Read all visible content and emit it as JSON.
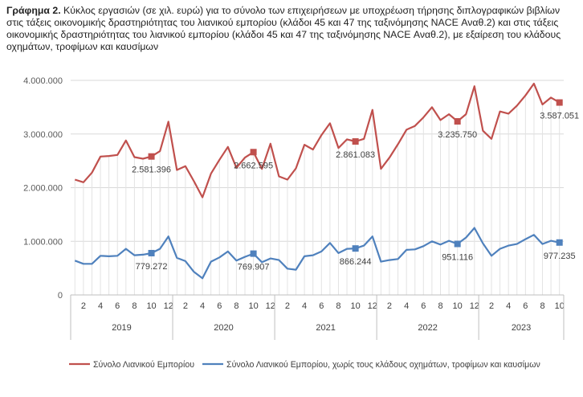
{
  "caption": {
    "label": "Γράφημα 2.",
    "text": "Κύκλος εργασιών (σε χιλ. ευρώ) για το σύνολο των επιχειρήσεων με υποχρέωση τήρησης διπλογραφικών βιβλίων στις τάξεις οικονομικής δραστηριότητας του λιανικού εμπορίου (κλάδοι 45 και 47 της ταξινόμησης NACE Αναθ.2) και στις τάξεις οικονομικής δραστηριότητας του λιανικού εμπορίου (κλάδοι 45 και 47 της ταξινόμησης NACE Αναθ.2), με εξαίρεση του κλάδους οχημάτων, τροφίμων και καυσίμων"
  },
  "chart_data": {
    "type": "line",
    "years": [
      "2019",
      "2020",
      "2021",
      "2022",
      "2023"
    ],
    "month_ticks": [
      "2",
      "4",
      "6",
      "8",
      "10",
      "12"
    ],
    "x": [
      "2019-01",
      "2019-02",
      "2019-03",
      "2019-04",
      "2019-05",
      "2019-06",
      "2019-07",
      "2019-08",
      "2019-09",
      "2019-10",
      "2019-11",
      "2019-12",
      "2020-01",
      "2020-02",
      "2020-03",
      "2020-04",
      "2020-05",
      "2020-06",
      "2020-07",
      "2020-08",
      "2020-09",
      "2020-10",
      "2020-11",
      "2020-12",
      "2021-01",
      "2021-02",
      "2021-03",
      "2021-04",
      "2021-05",
      "2021-06",
      "2021-07",
      "2021-08",
      "2021-09",
      "2021-10",
      "2021-11",
      "2021-12",
      "2022-01",
      "2022-02",
      "2022-03",
      "2022-04",
      "2022-05",
      "2022-06",
      "2022-07",
      "2022-08",
      "2022-09",
      "2022-10",
      "2022-11",
      "2022-12",
      "2023-01",
      "2023-02",
      "2023-03",
      "2023-04",
      "2023-05",
      "2023-06",
      "2023-07",
      "2023-08",
      "2023-09",
      "2023-10"
    ],
    "ylim": [
      0,
      4000000
    ],
    "yticks": [
      0,
      1000000,
      2000000,
      3000000,
      4000000
    ],
    "ytick_labels": [
      "0",
      "1.000.000",
      "2.000.000",
      "3.000.000",
      "4.000.000"
    ],
    "grid": true,
    "legend": "bottom",
    "series": [
      {
        "name": "Σύνολο Λιανικού Εμπορίου",
        "color": "#c0504d",
        "values": [
          2150000,
          2100000,
          2280000,
          2580000,
          2590000,
          2610000,
          2880000,
          2570000,
          2540000,
          2581396,
          2680000,
          3230000,
          2330000,
          2400000,
          2120000,
          1820000,
          2260000,
          2520000,
          2760000,
          2370000,
          2560000,
          2662595,
          2350000,
          2820000,
          2210000,
          2150000,
          2360000,
          2800000,
          2710000,
          2980000,
          3200000,
          2740000,
          2900000,
          2861083,
          2910000,
          3450000,
          2350000,
          2560000,
          2810000,
          3080000,
          3150000,
          3310000,
          3500000,
          3260000,
          3370000,
          3235750,
          3370000,
          3890000,
          3060000,
          2910000,
          3420000,
          3380000,
          3530000,
          3720000,
          3940000,
          3550000,
          3680000,
          3587051
        ]
      },
      {
        "name": "Σύνολο Λιανικού Εμπορίου, χωρίς τους κλάδους οχημάτων, τροφίμων και καυσίμων",
        "color": "#4f81bd",
        "values": [
          640000,
          580000,
          580000,
          730000,
          720000,
          730000,
          860000,
          740000,
          750000,
          779272,
          860000,
          1090000,
          690000,
          630000,
          430000,
          310000,
          620000,
          700000,
          810000,
          640000,
          710000,
          769907,
          610000,
          680000,
          650000,
          490000,
          470000,
          720000,
          740000,
          810000,
          970000,
          780000,
          860000,
          866244,
          920000,
          1090000,
          620000,
          650000,
          670000,
          840000,
          850000,
          910000,
          1000000,
          940000,
          1010000,
          951116,
          1070000,
          1250000,
          960000,
          730000,
          860000,
          920000,
          950000,
          1040000,
          1120000,
          950000,
          1010000,
          977235
        ]
      }
    ],
    "annotations": [
      {
        "series": 0,
        "x": "2019-10",
        "text": "2.581.396"
      },
      {
        "series": 0,
        "x": "2020-10",
        "text": "2.662.595"
      },
      {
        "series": 0,
        "x": "2021-10",
        "text": "2.861.083"
      },
      {
        "series": 0,
        "x": "2022-10",
        "text": "3.235.750"
      },
      {
        "series": 0,
        "x": "2023-10",
        "text": "3.587.051"
      },
      {
        "series": 1,
        "x": "2019-10",
        "text": "779.272"
      },
      {
        "series": 1,
        "x": "2020-10",
        "text": "769.907"
      },
      {
        "series": 1,
        "x": "2021-10",
        "text": "866.244"
      },
      {
        "series": 1,
        "x": "2022-10",
        "text": "951.116"
      },
      {
        "series": 1,
        "x": "2023-10",
        "text": "977.235"
      }
    ]
  }
}
